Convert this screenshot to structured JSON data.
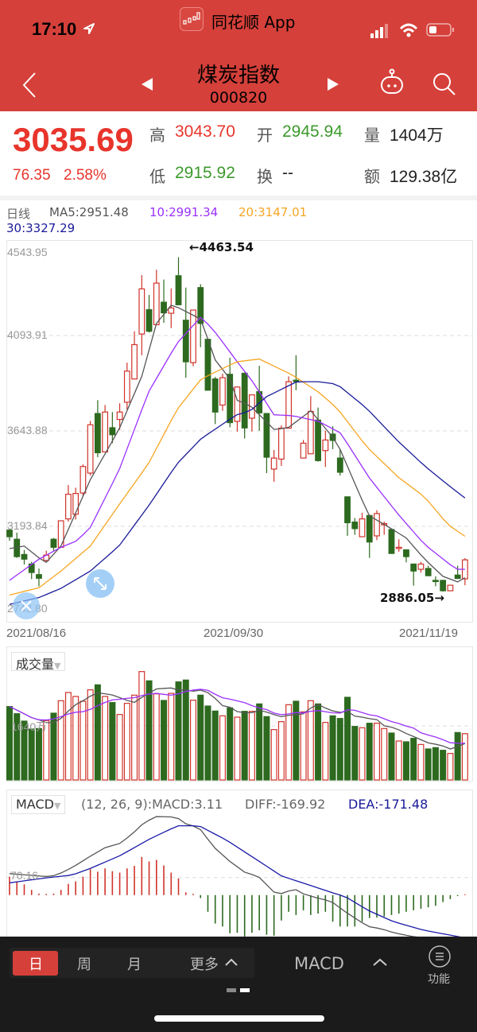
{
  "status": {
    "time": "17:10",
    "app_label": "同花顺 App"
  },
  "nav": {
    "title": "煤炭指数",
    "code": "000820"
  },
  "quote": {
    "last": "3035.69",
    "change": "76.35",
    "change_pct": "2.58%",
    "high_label": "高",
    "high": "3043.70",
    "open_label": "开",
    "open": "2945.94",
    "volume_label": "量",
    "volume": "1404万",
    "low_label": "低",
    "low": "2915.92",
    "turnover_label": "换",
    "turnover": "--",
    "amount_label": "额",
    "amount": "129.38亿"
  },
  "legend": {
    "period": "日线",
    "ma5": "MA5:2951.48",
    "ma10": "10:2991.34",
    "ma20": "20:3147.01",
    "ma30": "30:3327.29"
  },
  "colors": {
    "header": "#d6403a",
    "up": "#d0332a",
    "down": "#2d6a1f",
    "ma5": "#555555",
    "ma10": "#9b30ff",
    "ma20": "#f5a623",
    "ma30": "#1a1a9a"
  },
  "chart_data": [
    {
      "type": "candlestick",
      "yticks": [
        "4543.95",
        "4093.91",
        "3643.88",
        "3193.84",
        "2743.80"
      ],
      "ylim": [
        2743.8,
        4543.95
      ],
      "xticks": [
        "2021/08/16",
        "2021/09/30",
        "2021/11/19"
      ],
      "annotations": {
        "high": "←4463.54",
        "low": "2886.05→"
      },
      "ohlc": [
        [
          3176,
          3183,
          3126,
          3145
        ],
        [
          3133,
          3164,
          3045,
          3051
        ],
        [
          3061,
          3082,
          3014,
          3039
        ],
        [
          3016,
          3026,
          2945,
          2976
        ],
        [
          2966,
          2995,
          2911,
          2949
        ],
        [
          3033,
          3079,
          3029,
          3058
        ],
        [
          3133,
          3139,
          3076,
          3095
        ],
        [
          3095,
          3222,
          3093,
          3220
        ],
        [
          3229,
          3389,
          3216,
          3345
        ],
        [
          3251,
          3376,
          3226,
          3349
        ],
        [
          3351,
          3486,
          3333,
          3476
        ],
        [
          3445,
          3691,
          3433,
          3673
        ],
        [
          3726,
          3789,
          3520,
          3541
        ],
        [
          3545,
          3766,
          3543,
          3733
        ],
        [
          3659,
          3733,
          3586,
          3626
        ],
        [
          3698,
          3774,
          3649,
          3733
        ],
        [
          3779,
          3966,
          3745,
          3926
        ],
        [
          3889,
          4114,
          3887,
          4051
        ],
        [
          4101,
          4379,
          4001,
          4314
        ],
        [
          4216,
          4285,
          4108,
          4114
        ],
        [
          4145,
          4404,
          4143,
          4341
        ],
        [
          4251,
          4358,
          4154,
          4201
        ],
        [
          4199,
          4316,
          4129,
          4224
        ],
        [
          4376,
          4463.54,
          4237,
          4239
        ],
        [
          4166,
          4320,
          3895,
          3970
        ],
        [
          3966,
          4216,
          3949,
          4214
        ],
        [
          4320,
          4336,
          4039,
          4151
        ],
        [
          4076,
          4078,
          3834,
          3836
        ],
        [
          3889,
          3899,
          3676,
          3733
        ],
        [
          3766,
          3914,
          3739,
          3895
        ],
        [
          3911,
          3989,
          3661,
          3683
        ],
        [
          3689,
          3853,
          3641,
          3851
        ],
        [
          3916,
          3918,
          3608,
          3658
        ],
        [
          3704,
          3816,
          3641,
          3814
        ],
        [
          3829,
          3951,
          3645,
          3729
        ],
        [
          3726,
          3728,
          3445,
          3520
        ],
        [
          3464,
          3554,
          3404,
          3516
        ],
        [
          3511,
          3670,
          3479,
          3657
        ],
        [
          3657,
          3901,
          3655,
          3876
        ],
        [
          3883,
          4001,
          3836,
          3877
        ],
        [
          3516,
          3601,
          3514,
          3586
        ],
        [
          3536,
          3808,
          3534,
          3736
        ],
        [
          3695,
          3754,
          3499,
          3504
        ],
        [
          3551,
          3645,
          3474,
          3601
        ],
        [
          3629,
          3666,
          3558,
          3599
        ],
        [
          3516,
          3558,
          3433,
          3449
        ],
        [
          3333,
          3335,
          3149,
          3211
        ],
        [
          3214,
          3233,
          3154,
          3183
        ],
        [
          3145,
          3258,
          3143,
          3229
        ],
        [
          3245,
          3247,
          3045,
          3120
        ],
        [
          3149,
          3270,
          3129,
          3254
        ],
        [
          3201,
          3216,
          3154,
          3207
        ],
        [
          3179,
          3181,
          3064,
          3066
        ],
        [
          3091,
          3133,
          3074,
          3095
        ],
        [
          3083,
          3085,
          3024,
          3051
        ],
        [
          3016,
          3018,
          2914,
          2983
        ],
        [
          2991,
          3026,
          2976,
          3016
        ],
        [
          2995,
          3008,
          2959,
          2961
        ],
        [
          2939,
          2958,
          2911,
          2935
        ],
        [
          2939,
          2941,
          2886.05,
          2890
        ],
        [
          2890,
          2918,
          2888,
          2916
        ],
        [
          2964,
          3008,
          2945,
          2948
        ],
        [
          2945.94,
          3043.7,
          2915.92,
          3035.69
        ]
      ],
      "ma_series": {
        "ma5": [
          [
            1,
            3089
          ],
          [
            3,
            3101
          ],
          [
            5.9,
            3020
          ],
          [
            8,
            3101
          ],
          [
            12,
            3414
          ],
          [
            15.9,
            3651
          ],
          [
            19,
            3901
          ],
          [
            21,
            4151
          ],
          [
            23.1,
            4241
          ],
          [
            27.1,
            4170
          ],
          [
            28.9,
            3983
          ],
          [
            31,
            3889
          ],
          [
            31.9,
            3789
          ],
          [
            33.7,
            3766
          ],
          [
            37,
            3651
          ],
          [
            38.9,
            3658
          ],
          [
            42,
            3739
          ],
          [
            45.6,
            3589
          ],
          [
            49.9,
            3245
          ],
          [
            52.4,
            3195
          ],
          [
            55,
            3139
          ],
          [
            57.5,
            3039
          ],
          [
            60,
            2958
          ],
          [
            62.2,
            2929
          ],
          [
            63,
            2951.48
          ]
        ],
        "ma10": [
          [
            1,
            2939
          ],
          [
            5,
            3039
          ],
          [
            8,
            3095
          ],
          [
            10.2,
            3126
          ],
          [
            12,
            3189
          ],
          [
            15.9,
            3458
          ],
          [
            19.9,
            3826
          ],
          [
            23.8,
            4058
          ],
          [
            27.1,
            4183
          ],
          [
            29.2,
            4101
          ],
          [
            31.9,
            3974
          ],
          [
            34.1,
            3876
          ],
          [
            37,
            3720
          ],
          [
            39.5,
            3716
          ],
          [
            43.1,
            3689
          ],
          [
            46.1,
            3633
          ],
          [
            49.9,
            3426
          ],
          [
            53.9,
            3251
          ],
          [
            57.5,
            3108
          ],
          [
            61.8,
            2991
          ],
          [
            63,
            2991.34
          ]
        ],
        "ma20": [
          [
            1,
            2870
          ],
          [
            5,
            2904
          ],
          [
            8,
            2983
          ],
          [
            12,
            3101
          ],
          [
            15.9,
            3295
          ],
          [
            19.9,
            3489
          ],
          [
            23.8,
            3745
          ],
          [
            27.1,
            3889
          ],
          [
            31.9,
            3970
          ],
          [
            35,
            3983
          ],
          [
            39.5,
            3908
          ],
          [
            43.1,
            3826
          ],
          [
            45.6,
            3751
          ],
          [
            49.6,
            3570
          ],
          [
            53.9,
            3426
          ],
          [
            57.5,
            3333
          ],
          [
            60.7,
            3201
          ],
          [
            63,
            3147.01
          ]
        ],
        "ma30": [
          [
            1,
            2826
          ],
          [
            5,
            2858
          ],
          [
            8,
            2901
          ],
          [
            12,
            2983
          ],
          [
            15.9,
            3101
          ],
          [
            19.9,
            3289
          ],
          [
            23.8,
            3489
          ],
          [
            27.1,
            3608
          ],
          [
            31.9,
            3720
          ],
          [
            33.7,
            3736
          ],
          [
            35.9,
            3804
          ],
          [
            40.1,
            3876
          ],
          [
            43.1,
            3876
          ],
          [
            45.6,
            3864
          ],
          [
            49.6,
            3751
          ],
          [
            53.9,
            3595
          ],
          [
            57.5,
            3479
          ],
          [
            60.7,
            3389
          ],
          [
            63,
            3327.29
          ]
        ]
      }
    },
    {
      "type": "bar",
      "title": "成交量",
      "unit": "万",
      "ref_label": "1640万",
      "ref_value": 1640,
      "values": [
        2227,
        2010,
        1785,
        1544,
        1560,
        1801,
        2026,
        2404,
        2653,
        2533,
        2388,
        2734,
        2886,
        2533,
        2348,
        1986,
        2324,
        2573,
        3288,
        3007,
        2613,
        2412,
        2629,
        2975,
        3031,
        2420,
        2573,
        2243,
        2090,
        1946,
        2187,
        1905,
        2082,
        2082,
        2307,
        1922,
        1528,
        1769,
        2283,
        2388,
        2066,
        2404,
        2307,
        1745,
        1946,
        1865,
        2508,
        1624,
        1584,
        1721,
        1721,
        1560,
        1423,
        1182,
        1158,
        1262,
        1077,
        941,
        981,
        900,
        804,
        1439,
        1404
      ]
    },
    {
      "type": "macd",
      "title": "MACD",
      "params": "(12, 26, 9):MACD:3.11",
      "diff_label": "DIFF:-169.92",
      "dea_label": "DEA:-171.48",
      "ref_label": "70.16",
      "ref_value": 70.16,
      "macd": [
        74,
        55,
        43,
        21,
        6,
        5,
        6,
        21,
        45,
        55,
        74,
        104,
        94,
        107,
        96,
        90,
        107,
        117,
        153,
        135,
        141,
        119,
        90,
        67,
        11,
        2,
        -12,
        -67,
        -114,
        -126,
        -153,
        -151,
        -166,
        -151,
        -141,
        -159,
        -163,
        -102,
        -67,
        -80,
        -61,
        -80,
        -74,
        -67,
        -107,
        -126,
        -126,
        -126,
        -107,
        -92,
        -90,
        -86,
        -80,
        -74,
        -67,
        -61,
        -55,
        -49,
        -43,
        -28,
        -16,
        -4,
        3.11
      ],
      "diff": [
        [
          1,
          86
        ],
        [
          6.2,
          74
        ],
        [
          7.4,
          80
        ],
        [
          9.5,
          110
        ],
        [
          12,
          156
        ],
        [
          14,
          190
        ],
        [
          16.1,
          208
        ],
        [
          17.7,
          245
        ],
        [
          19,
          282
        ],
        [
          20.8,
          315
        ],
        [
          23.7,
          313
        ],
        [
          25,
          286
        ],
        [
          26.8,
          270
        ],
        [
          28.9,
          190
        ],
        [
          31,
          135
        ],
        [
          33,
          92
        ],
        [
          34.9,
          74
        ],
        [
          37,
          12
        ],
        [
          38,
          6
        ],
        [
          39.8,
          25
        ],
        [
          40.9,
          6
        ],
        [
          42.9,
          -12
        ],
        [
          44.8,
          -25
        ],
        [
          46.7,
          -67
        ],
        [
          49.8,
          -126
        ],
        [
          51.6,
          -135
        ],
        [
          53.3,
          -151
        ],
        [
          55.8,
          -166
        ],
        [
          59.9,
          -180
        ],
        [
          63,
          -169.92
        ]
      ],
      "dea": [
        [
          1,
          49
        ],
        [
          6.2,
          70
        ],
        [
          9.5,
          80
        ],
        [
          12,
          107
        ],
        [
          16.1,
          159
        ],
        [
          20.2,
          227
        ],
        [
          23.9,
          278
        ],
        [
          26.8,
          278
        ],
        [
          30.5,
          221
        ],
        [
          34.7,
          141
        ],
        [
          38,
          77
        ],
        [
          40.9,
          49
        ],
        [
          45,
          9
        ],
        [
          46.7,
          -6
        ],
        [
          49.8,
          -61
        ],
        [
          53.3,
          -107
        ],
        [
          57.4,
          -141
        ],
        [
          63,
          -171.48
        ]
      ]
    }
  ],
  "bottom": {
    "tabs": [
      "日",
      "周",
      "月"
    ],
    "more": "更多",
    "indicator": "MACD",
    "func": "功能"
  }
}
